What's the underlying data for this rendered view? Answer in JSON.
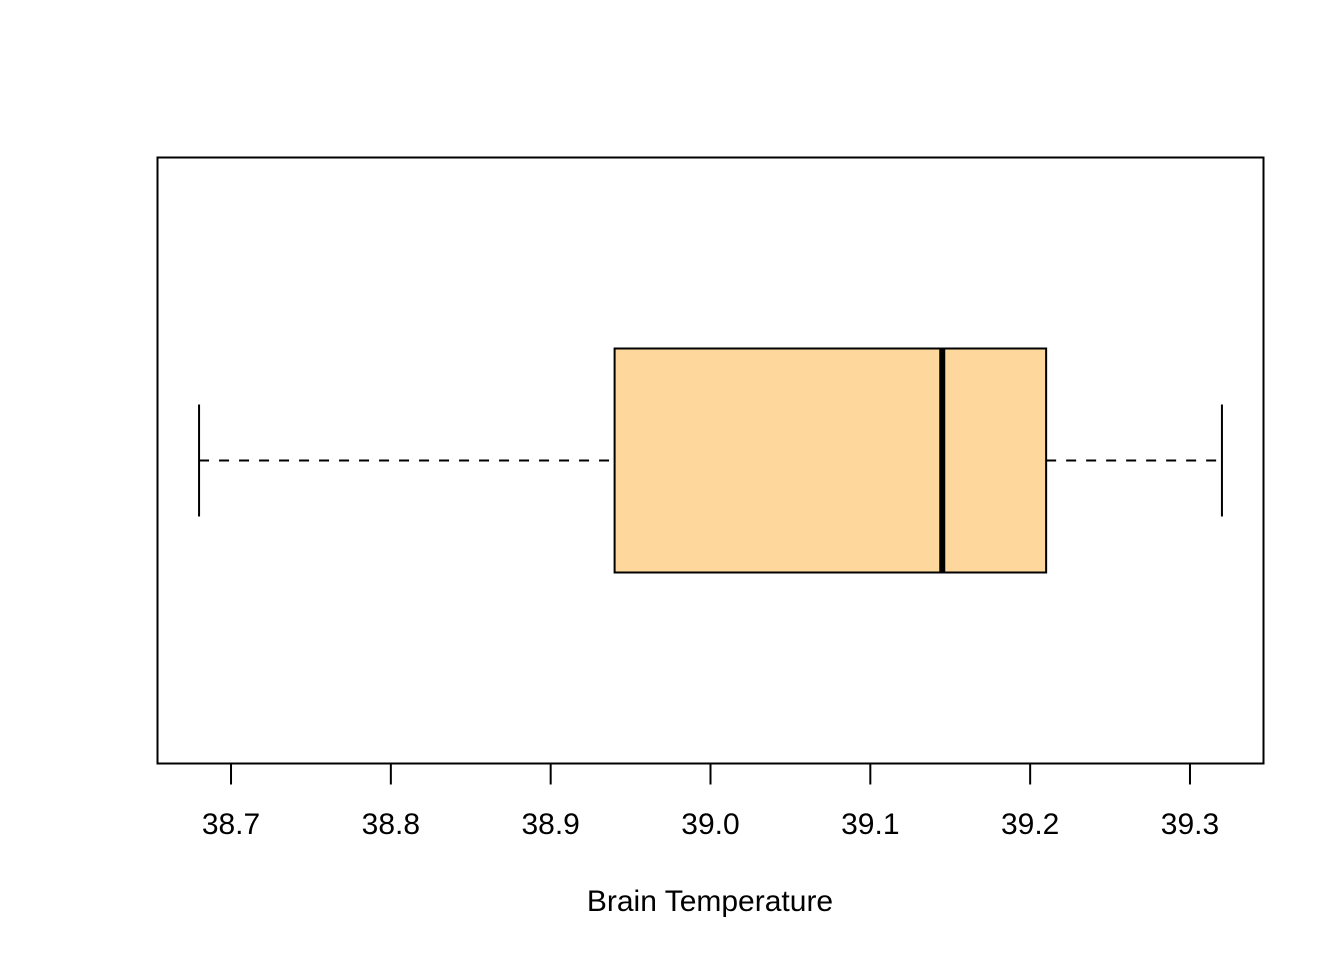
{
  "chart_data": {
    "type": "boxplot",
    "orientation": "horizontal",
    "title": "",
    "xlabel": "Brain Temperature",
    "ylabel": "",
    "xlim": [
      38.654,
      39.346
    ],
    "ticks": [
      38.7,
      38.8,
      38.9,
      39.0,
      39.1,
      39.2,
      39.3
    ],
    "tick_labels": [
      "38.7",
      "38.8",
      "38.9",
      "39.0",
      "39.1",
      "39.2",
      "39.3"
    ],
    "box": {
      "whisker_low": 38.68,
      "q1": 38.94,
      "median": 39.145,
      "q3": 39.21,
      "whisker_high": 39.32
    },
    "box_color": "#FDD79B",
    "border_color": "#000000",
    "grid": false,
    "legend": "none"
  }
}
